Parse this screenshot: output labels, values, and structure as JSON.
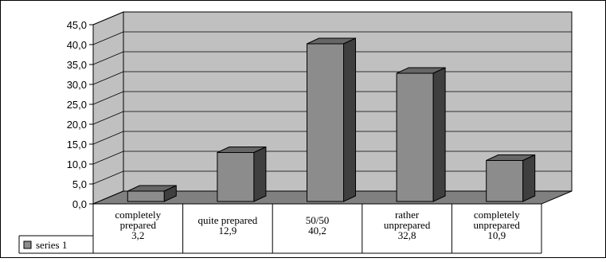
{
  "chart_data": {
    "type": "bar",
    "title": "",
    "xlabel": "",
    "ylabel": "",
    "ylim": [
      0,
      45
    ],
    "y_ticks": [
      "0,0",
      "5,0",
      "10,0",
      "15,0",
      "20,0",
      "25,0",
      "30,0",
      "35,0",
      "40,0",
      "45,0"
    ],
    "categories": [
      "completely prepared",
      "quite prepared",
      "50/50",
      "rather unprepared",
      "completely unprepared"
    ],
    "category_labels": [
      [
        "completely",
        "prepared",
        "3,2"
      ],
      [
        "quite prepared",
        "12,9"
      ],
      [
        "50/50",
        "40,2"
      ],
      [
        "rather",
        "unprepared",
        "32,8"
      ],
      [
        "completely",
        "unprepared",
        "10,9"
      ]
    ],
    "series": [
      {
        "name": "series 1",
        "values": [
          3.2,
          12.9,
          40.2,
          32.8,
          10.9
        ]
      }
    ],
    "grid": true,
    "legend": "bottom-left data table",
    "colors": {
      "wall": "#c0c0c0",
      "floor": "#808080",
      "bar_front": "#8c8c8c",
      "bar_top": "#666666",
      "bar_side": "#3f3f3f",
      "grid": "#000000"
    }
  }
}
